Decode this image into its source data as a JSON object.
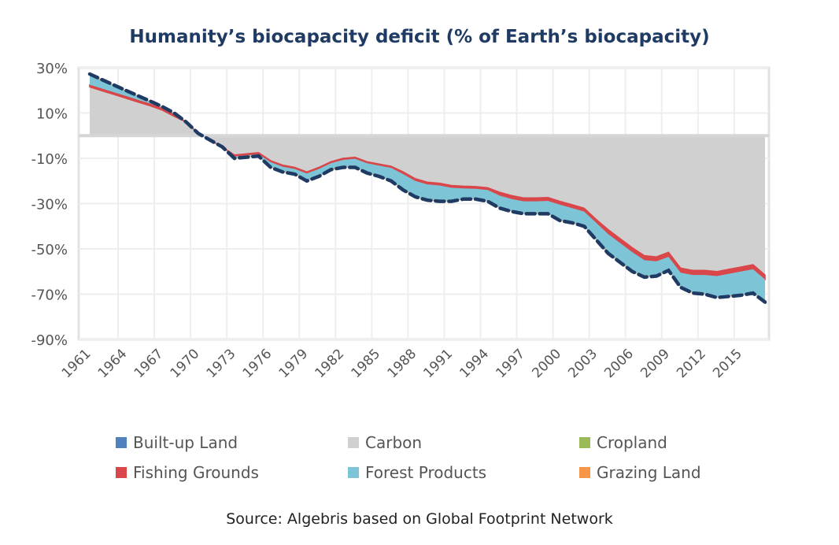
{
  "chart_data": {
    "type": "area",
    "stacked": true,
    "title": "Humanity’s biocapacity deficit (% of Earth’s biocapacity)",
    "source": "Source: Algebris based on Global Footprint Network",
    "xlabel": "",
    "ylabel": "",
    "ylim": [
      -90,
      30
    ],
    "yticks": [
      "30%",
      "10%",
      "-10%",
      "-30%",
      "-50%",
      "-70%",
      "-90%"
    ],
    "ytick_values": [
      30,
      10,
      -10,
      -30,
      -50,
      -70,
      -90
    ],
    "xticks": [
      "1961",
      "1964",
      "1967",
      "1970",
      "1973",
      "1976",
      "1979",
      "1982",
      "1985",
      "1988",
      "1991",
      "1994",
      "1997",
      "2000",
      "2003",
      "2006",
      "2009",
      "2012",
      "2015"
    ],
    "x": [
      1961,
      1962,
      1963,
      1964,
      1965,
      1966,
      1967,
      1968,
      1969,
      1970,
      1971,
      1972,
      1973,
      1974,
      1975,
      1976,
      1977,
      1978,
      1979,
      1980,
      1981,
      1982,
      1983,
      1984,
      1985,
      1986,
      1987,
      1988,
      1989,
      1990,
      1991,
      1992,
      1993,
      1994,
      1995,
      1996,
      1997,
      1998,
      1999,
      2000,
      2001,
      2002,
      2003,
      2004,
      2005,
      2006,
      2007,
      2008,
      2009,
      2010,
      2011,
      2012,
      2013,
      2014,
      2015,
      2016,
      2017
    ],
    "grid": true,
    "legend_position": "bottom",
    "series": [
      {
        "name": "Built-up Land",
        "color": "#4f81bd",
        "values": [
          0,
          0,
          0,
          0,
          0,
          0,
          0,
          0,
          0,
          0,
          0,
          0,
          0,
          0,
          0,
          0,
          0,
          0,
          0,
          0,
          0,
          0,
          0,
          0,
          0,
          0,
          0,
          0,
          0,
          0,
          0,
          0,
          0,
          0,
          0,
          0,
          0,
          0,
          0,
          0,
          0,
          0,
          0,
          0,
          0,
          0,
          0,
          0,
          0,
          0,
          0,
          0,
          0,
          0,
          0,
          0,
          0
        ]
      },
      {
        "name": "Carbon",
        "color": "#d0d0d0",
        "values": [
          21.5,
          19.8,
          18.2,
          16.5,
          14.8,
          13.2,
          11.3,
          8.5,
          6,
          1,
          -2,
          -5,
          -8.5,
          -8,
          -7.5,
          -11,
          -13,
          -14,
          -16,
          -14,
          -11.5,
          -10,
          -9.5,
          -11.5,
          -12.5,
          -13.5,
          -16,
          -19,
          -20.5,
          -21,
          -22,
          -22.3,
          -22.5,
          -23,
          -25,
          -26.5,
          -27.5,
          -27.5,
          -27.3,
          -29,
          -30.5,
          -32,
          -37,
          -41.5,
          -45.5,
          -49.5,
          -53,
          -53.5,
          -51.5,
          -58.5,
          -59.5,
          -59.5,
          -60,
          -59,
          -58,
          -57,
          -61.5
        ]
      },
      {
        "name": "Cropland",
        "color": "#9bbb59",
        "values": [
          0,
          0,
          0,
          0,
          0,
          0,
          0,
          0,
          0,
          0,
          0,
          0,
          0,
          0,
          0,
          0,
          0,
          0,
          0,
          0,
          0,
          0,
          0,
          0,
          0,
          0,
          0,
          0,
          0,
          0,
          0,
          0,
          0,
          0,
          0,
          0,
          0,
          0,
          0,
          0,
          0,
          0,
          0,
          0,
          0,
          0,
          0,
          0,
          0,
          0,
          0,
          0,
          0,
          0,
          0,
          0,
          0
        ]
      },
      {
        "name": "Fishing Grounds",
        "color": "#d9474a",
        "values": [
          1,
          1,
          1,
          1,
          1,
          1,
          1,
          1,
          0,
          0,
          0,
          0,
          -0.7,
          -0.7,
          -0.7,
          -0.7,
          -0.7,
          -0.7,
          -0.7,
          -0.7,
          -0.7,
          -0.7,
          -0.7,
          -0.7,
          -0.7,
          -0.7,
          -1,
          -1,
          -1,
          -1,
          -1,
          -1,
          -1,
          -1,
          -1.5,
          -1.5,
          -1.5,
          -1.5,
          -1.5,
          -1.5,
          -1.5,
          -1.5,
          -1.5,
          -2,
          -2,
          -2,
          -2,
          -2,
          -2,
          -2,
          -2,
          -2,
          -2,
          -2,
          -2,
          -2,
          -2
        ]
      },
      {
        "name": "Forest Products",
        "color": "#7cc4d6",
        "values": [
          4.4,
          3.7,
          2.9,
          2.2,
          1.5,
          0.8,
          0.3,
          0.2,
          0,
          0,
          0,
          0,
          -0.5,
          -0.5,
          -0.5,
          -2,
          -2,
          -2,
          -3,
          -3,
          -2.5,
          -3,
          -3.5,
          -4,
          -4.5,
          -5.5,
          -6.7,
          -6.7,
          -6.7,
          -6.7,
          -5.7,
          -4.4,
          -4.2,
          -4.7,
          -5.2,
          -5.2,
          -5.2,
          -5.2,
          -5.4,
          -6.7,
          -6.2,
          -6.2,
          -7.2,
          -8.2,
          -8.2,
          -8.2,
          -7.2,
          -6.2,
          -5.7,
          -6.2,
          -7.7,
          -8.2,
          -9.2,
          -9.7,
          -10.2,
          -10.2,
          -9.7
        ]
      },
      {
        "name": "Grazing Land",
        "color": "#f79646",
        "values": [
          0.3,
          0.3,
          0.3,
          0.3,
          0.3,
          0.3,
          0.3,
          0.3,
          0,
          0,
          0,
          0,
          -0.3,
          -0.3,
          -0.3,
          -0.3,
          -0.3,
          -0.3,
          -0.3,
          -0.3,
          -0.3,
          -0.3,
          -0.3,
          -0.3,
          -0.3,
          -0.3,
          -0.3,
          -0.3,
          -0.3,
          -0.3,
          -0.3,
          -0.3,
          -0.3,
          -0.3,
          -0.3,
          -0.3,
          -0.3,
          -0.3,
          -0.3,
          -0.3,
          -0.3,
          -0.3,
          -0.3,
          -0.3,
          -0.3,
          -0.3,
          -0.3,
          -0.3,
          -0.3,
          -0.3,
          -0.3,
          -0.3,
          -0.3,
          -0.3,
          -0.3,
          -0.3,
          -0.3
        ]
      }
    ],
    "total_line": {
      "color": "#1f3b63",
      "style": "dashed"
    }
  }
}
